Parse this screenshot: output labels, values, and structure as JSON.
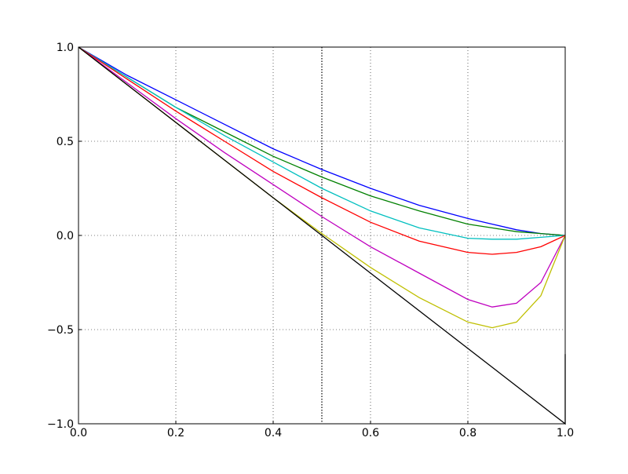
{
  "chart_data": {
    "type": "line",
    "xlim": [
      0,
      1
    ],
    "ylim": [
      -1,
      1
    ],
    "xticks": [
      {
        "value": 0,
        "label": "0.0"
      },
      0.2,
      0.4,
      0.6,
      0.8,
      {
        "value": 1,
        "label": "1.0"
      }
    ],
    "yticks": [
      {
        "value": -1,
        "label": "−1.0"
      },
      {
        "value": -0.5,
        "label": "−0.5"
      },
      {
        "value": 0,
        "label": "0.0"
      },
      0.5,
      {
        "value": 1,
        "label": "1.0"
      }
    ],
    "grid": true,
    "vline": 0.5,
    "series": [
      {
        "color": "#0000ff",
        "x": [
          0,
          0.1,
          0.2,
          0.3,
          0.4,
          0.5,
          0.6,
          0.7,
          0.8,
          0.85,
          0.9,
          0.95,
          1
        ],
        "values": [
          1,
          0.85,
          0.72,
          0.59,
          0.46,
          0.35,
          0.25,
          0.16,
          0.09,
          0.06,
          0.03,
          0.01,
          0
        ]
      },
      {
        "color": "#008000",
        "x": [
          0,
          0.1,
          0.2,
          0.3,
          0.4,
          0.5,
          0.6,
          0.7,
          0.8,
          0.85,
          0.9,
          0.95,
          1
        ],
        "values": [
          1,
          0.84,
          0.68,
          0.55,
          0.42,
          0.31,
          0.21,
          0.13,
          0.06,
          0.04,
          0.02,
          0.01,
          0
        ]
      },
      {
        "color": "#00bfbf",
        "x": [
          0,
          0.1,
          0.2,
          0.3,
          0.4,
          0.5,
          0.6,
          0.7,
          0.8,
          0.85,
          0.9,
          0.95,
          1
        ],
        "values": [
          1,
          0.84,
          0.68,
          0.53,
          0.39,
          0.25,
          0.13,
          0.04,
          -0.015,
          -0.02,
          -0.02,
          -0.01,
          0
        ]
      },
      {
        "color": "#ff0000",
        "x": [
          0,
          0.1,
          0.2,
          0.3,
          0.4,
          0.5,
          0.6,
          0.7,
          0.8,
          0.85,
          0.9,
          0.95,
          1
        ],
        "values": [
          1,
          0.83,
          0.66,
          0.5,
          0.34,
          0.2,
          0.07,
          -0.03,
          -0.09,
          -0.1,
          -0.09,
          -0.06,
          0
        ]
      },
      {
        "color": "#bf00bf",
        "x": [
          0,
          0.1,
          0.2,
          0.3,
          0.4,
          0.5,
          0.6,
          0.7,
          0.8,
          0.85,
          0.9,
          0.95,
          1
        ],
        "values": [
          1,
          0.81,
          0.62,
          0.44,
          0.27,
          0.1,
          -0.06,
          -0.2,
          -0.34,
          -0.38,
          -0.36,
          -0.25,
          0
        ]
      },
      {
        "color": "#bfbf00",
        "x": [
          0,
          0.1,
          0.2,
          0.3,
          0.4,
          0.5,
          0.6,
          0.7,
          0.8,
          0.85,
          0.9,
          0.95,
          1
        ],
        "values": [
          1,
          0.8,
          0.6,
          0.4,
          0.2,
          0.01,
          -0.17,
          -0.33,
          -0.46,
          -0.49,
          -0.46,
          -0.32,
          0
        ]
      },
      {
        "color": "#000000",
        "x": [
          0,
          1,
          1
        ],
        "values": [
          1,
          -1,
          -0.63
        ]
      }
    ]
  }
}
